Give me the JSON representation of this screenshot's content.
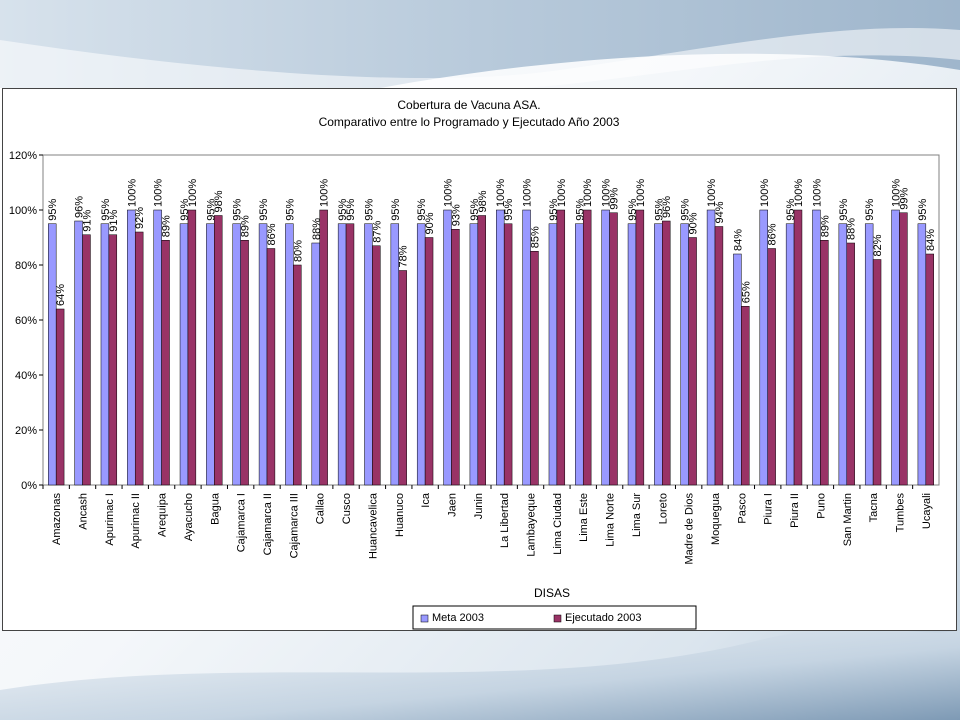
{
  "chart_data": {
    "type": "bar",
    "title": "Cobertura de Vacuna ASA.",
    "subtitle": "Comparativo entre lo Programado y Ejecutado Año 2003",
    "xlabel": "DISAS",
    "ylabel": "",
    "ylim": [
      0,
      120
    ],
    "yticks": [
      0,
      20,
      40,
      60,
      80,
      100,
      120
    ],
    "ytick_labels": [
      "0%",
      "20%",
      "40%",
      "60%",
      "80%",
      "100%",
      "120%"
    ],
    "grid": false,
    "legend_position": "bottom",
    "categories": [
      "Amazonas",
      "Ancash",
      "Apurimac I",
      "Apurimac II",
      "Arequipa",
      "Ayacucho",
      "Bagua",
      "Cajamarca I",
      "Cajamarca II",
      "Cajamarca III",
      "Callao",
      "Cusco",
      "Huancavelica",
      "Huanuco",
      "Ica",
      "Jaen",
      "Junin",
      "La Libertad",
      "Lambayeque",
      "Lima Ciudad",
      "Lima Este",
      "Lima Norte",
      "Lima Sur",
      "Loreto",
      "Madre de Dios",
      "Moquegua",
      "Pasco",
      "Piura I",
      "Piura II",
      "Puno",
      "San Martin",
      "Tacna",
      "Tumbes",
      "Ucayali"
    ],
    "series": [
      {
        "name": "Meta 2003",
        "color": "#9999ff",
        "values": [
          95,
          96,
          95,
          100,
          100,
          95,
          95,
          95,
          95,
          95,
          88,
          95,
          95,
          95,
          95,
          100,
          95,
          100,
          100,
          95,
          95,
          100,
          95,
          95,
          95,
          100,
          84,
          100,
          95,
          100,
          95,
          95,
          100,
          95
        ],
        "labels": [
          "95%",
          "96%",
          "95%",
          "100%",
          "100%",
          "95%",
          "95%",
          "95%",
          "95%",
          "95%",
          "88%",
          "95%",
          "95%",
          "95%",
          "95%",
          "100%",
          "95%",
          "100%",
          "100%",
          "95%",
          "95%",
          "100%",
          "95%",
          "95%",
          "95%",
          "100%",
          "84%",
          "100%",
          "95%",
          "100%",
          "95%",
          "95%",
          "100%",
          "95%"
        ]
      },
      {
        "name": "Ejecutado 2003",
        "color": "#993366",
        "values": [
          64,
          91,
          91,
          92,
          89,
          100,
          98,
          89,
          86,
          80,
          100,
          95,
          87,
          78,
          90,
          93,
          98,
          95,
          85,
          100,
          100,
          99,
          100,
          96,
          90,
          94,
          65,
          86,
          100,
          89,
          88,
          82,
          99,
          84
        ],
        "labels": [
          "64%",
          "91%",
          "91%",
          "92%",
          "89%",
          "100%",
          "98%",
          "89%",
          "86%",
          "80%",
          "100%",
          "95%",
          "87%",
          "78%",
          "90%",
          "93%",
          "98%",
          "95%",
          "85%",
          "100%",
          "100%",
          "99%",
          "100%",
          "96%",
          "90%",
          "94%",
          "65%",
          "86%",
          "100%",
          "89%",
          "88%",
          "82%",
          "99%",
          "84%"
        ]
      }
    ]
  }
}
